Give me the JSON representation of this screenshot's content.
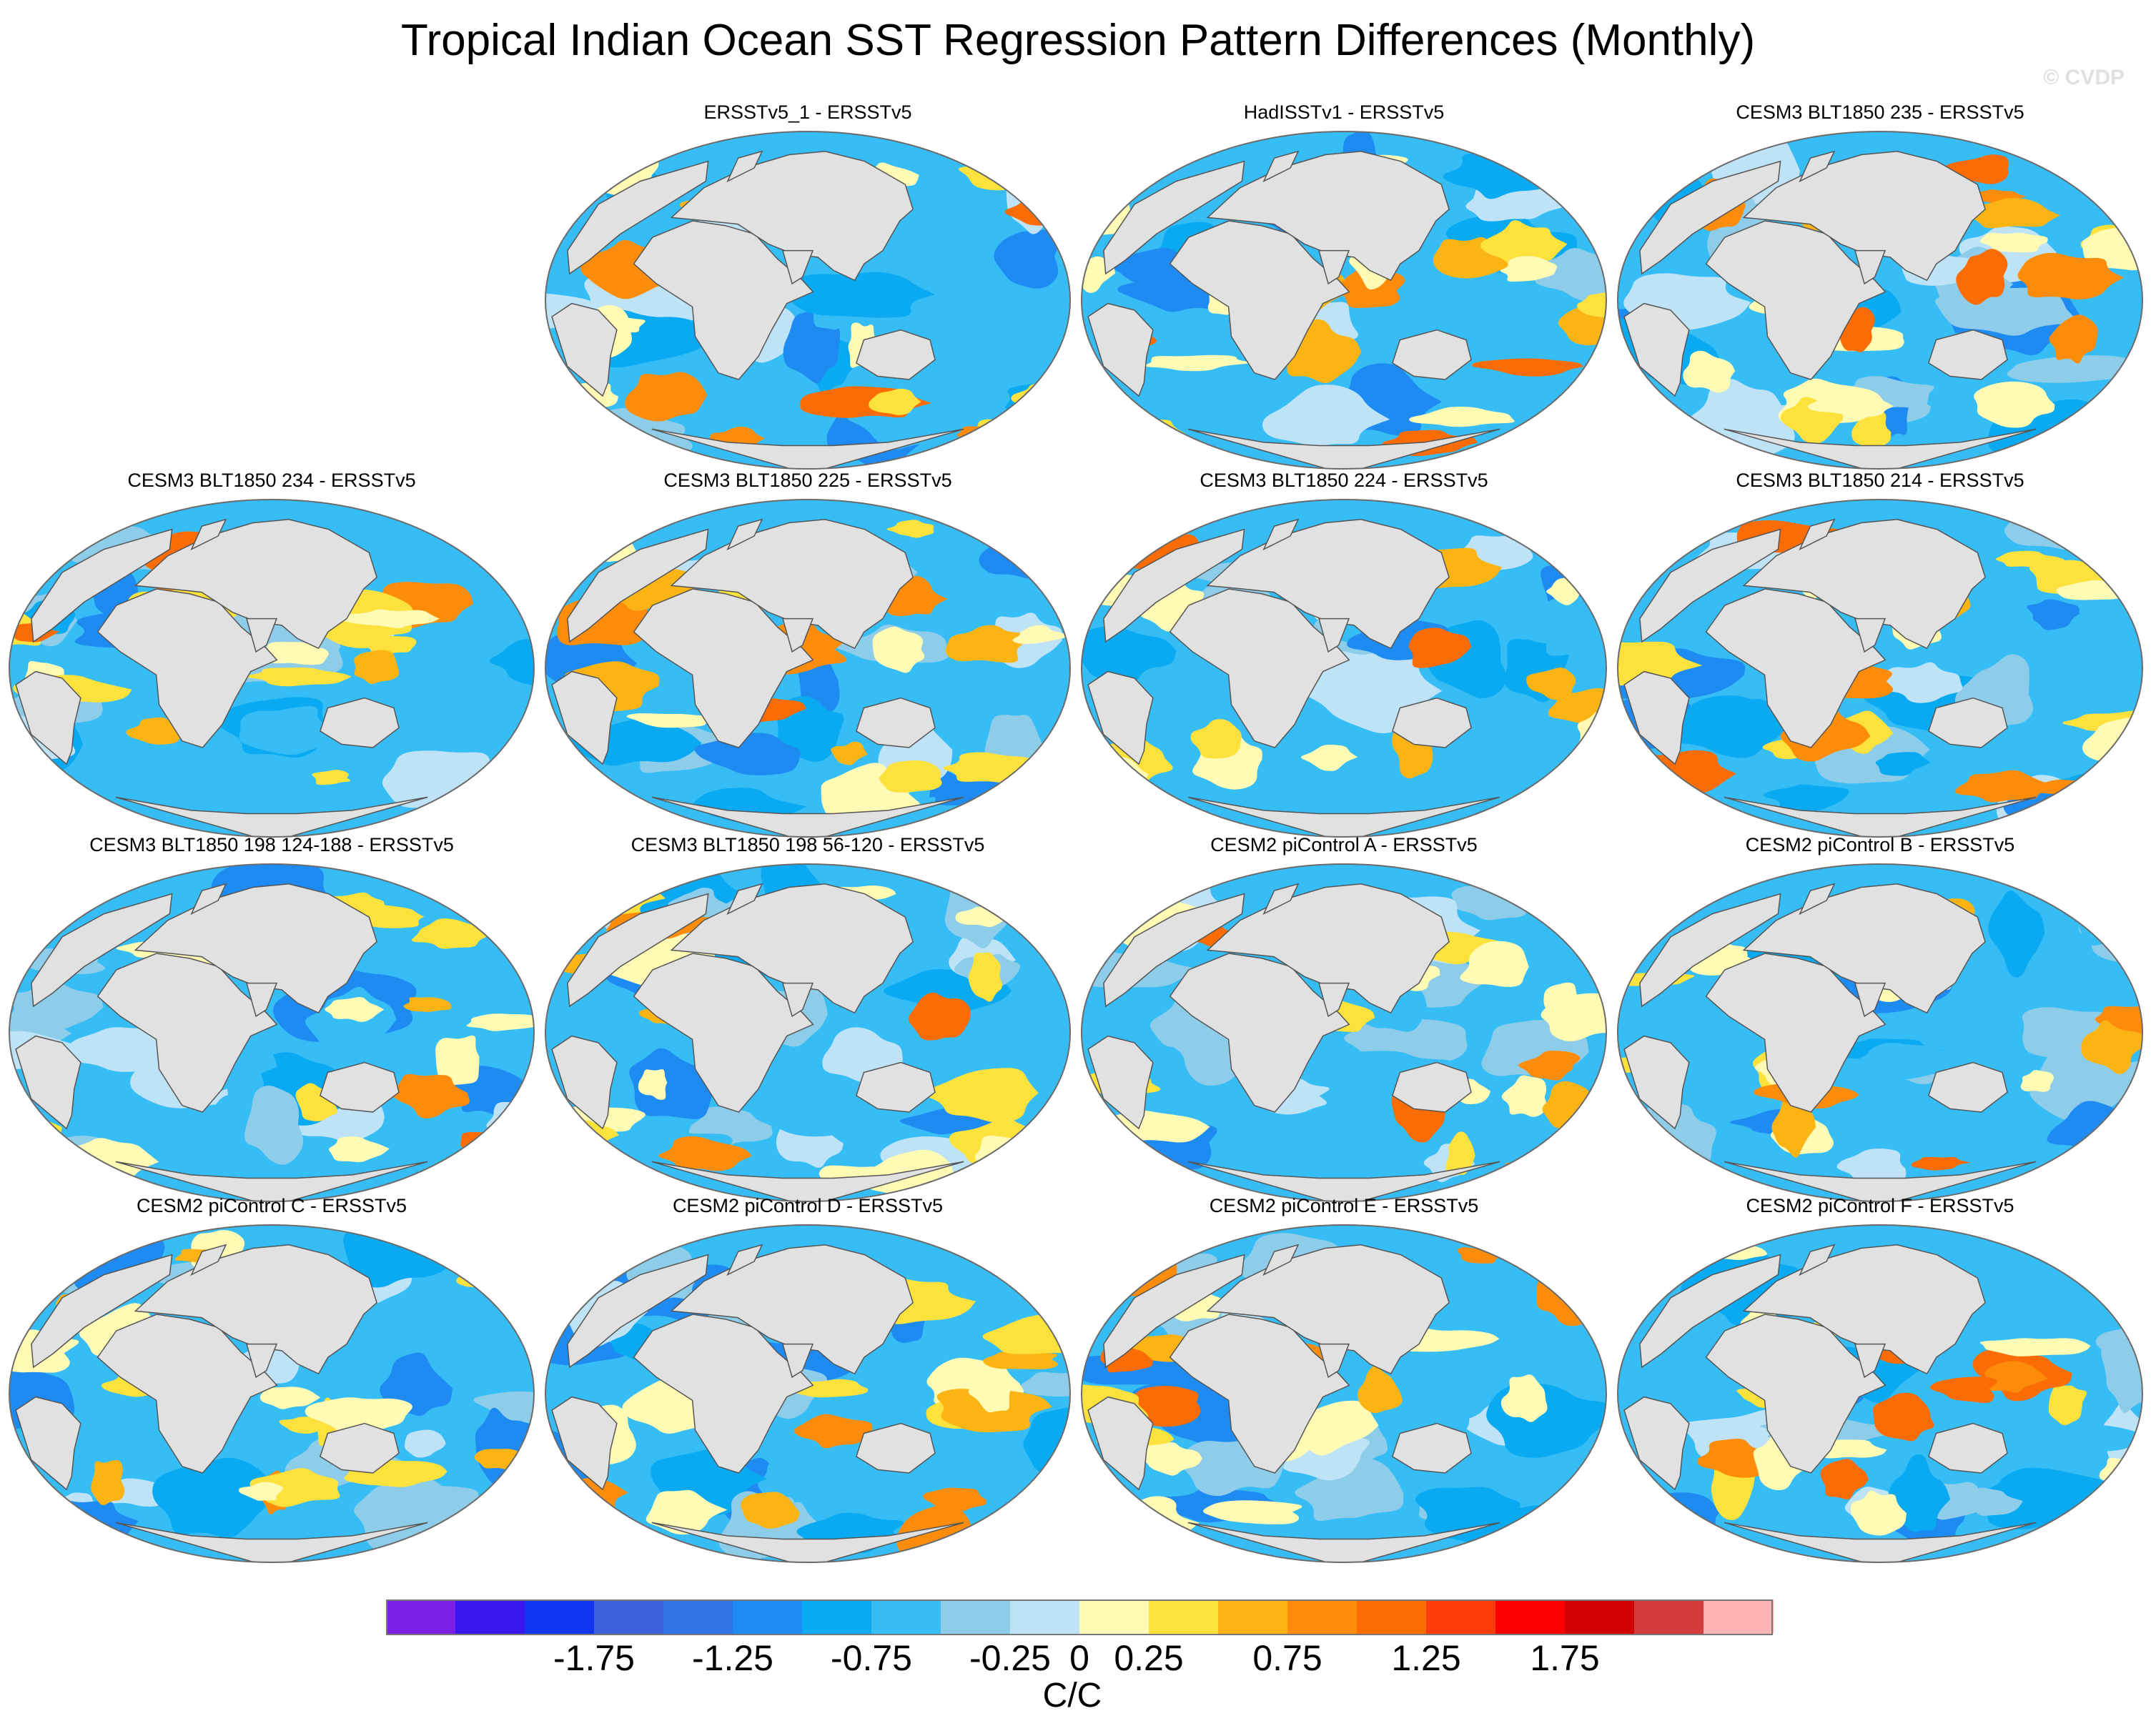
{
  "figure": {
    "title": "Tropical Indian Ocean SST Regression Pattern Differences (Monthly)",
    "watermark": "© CVDP",
    "units": "C/C"
  },
  "colors": {
    "land": "#e1e1e1",
    "coast": "#555555",
    "missing": "#ffffff"
  },
  "panels": [
    {
      "title": "ERSSTv5_1 - ERSSTv5",
      "pattern": "p1"
    },
    {
      "title": "HadISSTv1 - ERSSTv5",
      "pattern": "p2"
    },
    {
      "title": "CESM3 BLT1850 235 - ERSSTv5",
      "pattern": "p3"
    },
    {
      "title": "CESM3 BLT1850 234 - ERSSTv5",
      "pattern": "p4"
    },
    {
      "title": "CESM3 BLT1850 225 - ERSSTv5",
      "pattern": "p5"
    },
    {
      "title": "CESM3 BLT1850 224 - ERSSTv5",
      "pattern": "p6"
    },
    {
      "title": "CESM3 BLT1850 214 - ERSSTv5",
      "pattern": "p7"
    },
    {
      "title": "CESM3 BLT1850 198 124-188 - ERSSTv5",
      "pattern": "p8"
    },
    {
      "title": "CESM3 BLT1850 198 56-120 - ERSSTv5",
      "pattern": "p9"
    },
    {
      "title": "CESM2 piControl A - ERSSTv5",
      "pattern": "p10"
    },
    {
      "title": "CESM2 piControl B - ERSSTv5",
      "pattern": "p11"
    },
    {
      "title": "CESM2 piControl C - ERSSTv5",
      "pattern": "p12"
    },
    {
      "title": "CESM2 piControl D - ERSSTv5",
      "pattern": "p13"
    },
    {
      "title": "CESM2 piControl E - ERSSTv5",
      "pattern": "p14"
    },
    {
      "title": "CESM2 piControl F - ERSSTv5",
      "pattern": "p15"
    }
  ],
  "colorbar": {
    "colors": [
      "#7b1fe6",
      "#3a16f0",
      "#1236f0",
      "#3c5fdb",
      "#2f73e6",
      "#1e8bf2",
      "#0aaaf2",
      "#37bdf5",
      "#8ecdea",
      "#bee3f7",
      "#fffab4",
      "#fde13c",
      "#fcb414",
      "#fc8c0a",
      "#fc6c05",
      "#fc3c0a",
      "#fc0000",
      "#d20000",
      "#d23c3c",
      "#fcb4b4"
    ],
    "tick_labels": [
      "-1.75",
      "-1.25",
      "-0.75",
      "-0.25",
      "0",
      "0.25",
      "0.75",
      "1.25",
      "1.75"
    ]
  }
}
